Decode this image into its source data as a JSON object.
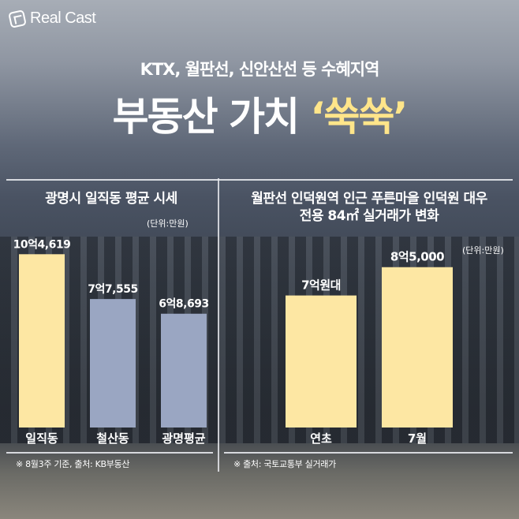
{
  "logo": {
    "text": "Real Cast"
  },
  "header": {
    "subtitle": "KTX, 월판선, 신안산선 등 수혜지역",
    "title_main": "부동산 가치",
    "title_highlight": "‘쑥쑥’"
  },
  "colors": {
    "highlight": "#ffe58a",
    "bar_yellow": "#fde7a3",
    "bar_blue": "#9aa6c2"
  },
  "left_panel": {
    "title": "광명시 일직동 평균 시세",
    "unit": "(단위:만원)",
    "source": "※ 8월3주 기준, 출처: KB부동산"
  },
  "right_panel": {
    "title_line1": "월판선 인덕원역 인근 푸른마을 인덕원 대우",
    "title_line2": "전용 84㎡ 실거래가 변화",
    "unit": "(단위:만원)",
    "source": "※ 출처: 국토교통부 실거래가"
  },
  "chart_data": [
    {
      "type": "bar",
      "title": "광명시 일직동 평균 시세",
      "unit": "(단위:만원)",
      "categories": [
        "일직동",
        "철산동",
        "광명평균"
      ],
      "values": [
        104619,
        77555,
        68693
      ],
      "data_labels": [
        "10억4,619",
        "7억7,555",
        "6억8,693"
      ],
      "bar_colors": [
        "#fde7a3",
        "#9aa6c2",
        "#9aa6c2"
      ],
      "ylim": [
        0,
        110000
      ],
      "grid": false
    },
    {
      "type": "bar",
      "title": "월판선 인덕원역 인근 푸른마을 인덕원 대우 전용 84㎡ 실거래가 변화",
      "unit": "(단위:만원)",
      "categories": [
        "연초",
        "7월"
      ],
      "values": [
        70000,
        85000
      ],
      "data_labels": [
        "7억원대",
        "8억5,000"
      ],
      "bar_colors": [
        "#fde7a3",
        "#fde7a3"
      ],
      "ylim": [
        0,
        92000
      ],
      "grid": false
    }
  ]
}
